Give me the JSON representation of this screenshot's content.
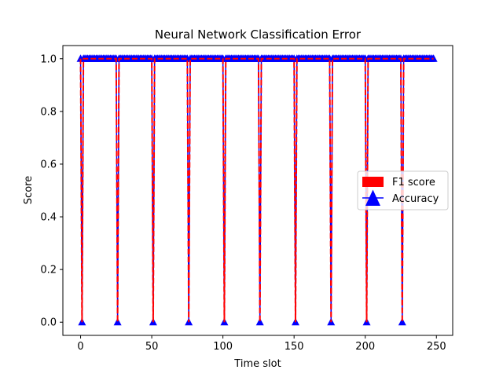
{
  "chart_data": {
    "type": "line",
    "title": "Neural Network Classification Error",
    "xlabel": "Time slot",
    "ylabel": "Score",
    "xlim": [
      -12.45,
      261.45
    ],
    "ylim": [
      -0.05,
      1.05
    ],
    "xticks": [
      0,
      50,
      100,
      150,
      200,
      250
    ],
    "xtick_labels": [
      "0",
      "50",
      "100",
      "150",
      "200",
      "250"
    ],
    "yticks": [
      0.0,
      0.2,
      0.4,
      0.6,
      0.8,
      1.0
    ],
    "ytick_labels": [
      "0.0",
      "0.2",
      "0.4",
      "0.6",
      "0.8",
      "1.0"
    ],
    "grid": false,
    "legend_position": "center-right",
    "x": {
      "start": 0,
      "end": 248,
      "step": 1
    },
    "dip_slots": [
      1,
      26,
      51,
      76,
      101,
      126,
      151,
      176,
      201,
      226
    ],
    "series": [
      {
        "name": "F1 score",
        "color": "#ff0000",
        "line_style": "dashed",
        "default_value": 1.0,
        "dip_value": 0.0
      },
      {
        "name": "Accuracy",
        "color": "#0000ff",
        "line_style": "solid",
        "marker": "triangle-up",
        "default_value": 1.0,
        "dip_value": 0.0
      }
    ]
  }
}
